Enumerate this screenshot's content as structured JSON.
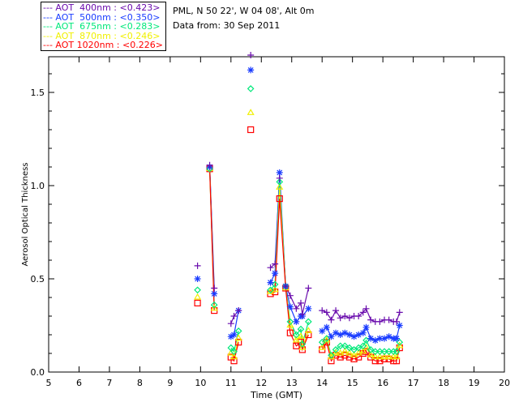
{
  "header": {
    "site": "PML, N 50 22', W 04 08', Alt 0m",
    "date": "Data from: 30 Sep 2011"
  },
  "chart_data": {
    "type": "scatter",
    "xlabel": "Time (GMT)",
    "ylabel": "Aerosol Optical Thickness",
    "xlim": [
      5,
      20
    ],
    "ylim": [
      0,
      1.69
    ],
    "xticks": [
      "5",
      "6",
      "7",
      "8",
      "9",
      "10",
      "11",
      "12",
      "13",
      "14",
      "15",
      "16",
      "17",
      "18",
      "19",
      "20"
    ],
    "yticks": [
      "0.0",
      "0.5",
      "1.0",
      "1.5"
    ],
    "legend_placement": "top-left outside",
    "x": [
      9.9,
      null,
      10.3,
      10.45,
      null,
      11.0,
      11.1,
      11.25,
      null,
      11.65,
      null,
      12.3,
      12.45,
      12.6,
      12.8,
      12.95,
      13.15,
      13.3,
      13.35,
      13.55,
      null,
      14.0,
      14.15,
      14.3,
      14.45,
      14.6,
      14.75,
      14.9,
      15.05,
      15.2,
      15.35,
      15.45,
      15.6,
      15.75,
      15.9,
      16.05,
      16.2,
      16.35,
      16.45,
      16.55
    ],
    "series": [
      {
        "name": "AOT  400nm",
        "mean": "<0.423>",
        "color": "#6a0dad",
        "marker": "plus",
        "values": [
          0.57,
          null,
          1.11,
          0.45,
          null,
          0.26,
          0.3,
          0.33,
          null,
          1.7,
          null,
          0.56,
          0.58,
          1.04,
          0.46,
          0.41,
          0.34,
          0.37,
          0.31,
          0.45,
          null,
          0.33,
          0.32,
          0.28,
          0.33,
          0.29,
          0.3,
          0.29,
          0.3,
          0.3,
          0.32,
          0.34,
          0.28,
          0.27,
          0.27,
          0.28,
          0.28,
          0.27,
          0.27,
          0.32
        ]
      },
      {
        "name": "AOT  500nm",
        "mean": "<0.350>",
        "color": "#1a3cff",
        "marker": "asterisk",
        "values": [
          0.5,
          null,
          1.1,
          0.42,
          null,
          0.19,
          0.2,
          0.33,
          null,
          1.62,
          null,
          0.48,
          0.53,
          1.07,
          0.46,
          0.35,
          0.27,
          0.3,
          0.3,
          0.34,
          null,
          0.22,
          0.24,
          0.19,
          0.21,
          0.2,
          0.21,
          0.2,
          0.19,
          0.2,
          0.21,
          0.24,
          0.18,
          0.17,
          0.18,
          0.18,
          0.19,
          0.18,
          0.18,
          0.25
        ]
      },
      {
        "name": "AOT  675nm",
        "mean": "<0.283>",
        "color": "#00e87a",
        "marker": "diamond",
        "values": [
          0.44,
          null,
          1.09,
          0.36,
          null,
          0.13,
          0.11,
          0.22,
          null,
          1.52,
          null,
          0.44,
          0.47,
          1.02,
          0.46,
          0.27,
          0.2,
          0.23,
          0.15,
          0.27,
          null,
          0.16,
          0.18,
          0.09,
          0.12,
          0.14,
          0.14,
          0.13,
          0.12,
          0.13,
          0.14,
          0.17,
          0.12,
          0.11,
          0.11,
          0.11,
          0.11,
          0.11,
          0.11,
          0.16
        ]
      },
      {
        "name": "AOT  870nm",
        "mean": "<0.246>",
        "color": "#f0f000",
        "marker": "triangle",
        "values": [
          0.4,
          null,
          1.09,
          0.34,
          null,
          0.1,
          0.08,
          0.18,
          null,
          1.39,
          null,
          0.43,
          0.44,
          0.99,
          0.45,
          0.25,
          0.17,
          0.19,
          0.13,
          0.22,
          null,
          0.13,
          0.17,
          0.08,
          0.1,
          0.1,
          0.11,
          0.1,
          0.09,
          0.1,
          0.11,
          0.13,
          0.09,
          0.08,
          0.08,
          0.08,
          0.08,
          0.08,
          0.08,
          0.14
        ]
      },
      {
        "name": "AOT 1020nm",
        "mean": "<0.226>",
        "color": "#ff0000",
        "marker": "square",
        "values": [
          0.37,
          null,
          1.09,
          0.33,
          null,
          0.08,
          0.06,
          0.16,
          null,
          1.3,
          null,
          0.42,
          0.43,
          0.93,
          0.45,
          0.21,
          0.14,
          0.16,
          0.12,
          0.2,
          null,
          0.12,
          0.16,
          0.06,
          0.09,
          0.08,
          0.09,
          0.08,
          0.07,
          0.08,
          0.1,
          0.11,
          0.08,
          0.06,
          0.06,
          0.07,
          0.07,
          0.06,
          0.06,
          0.13
        ]
      }
    ]
  }
}
